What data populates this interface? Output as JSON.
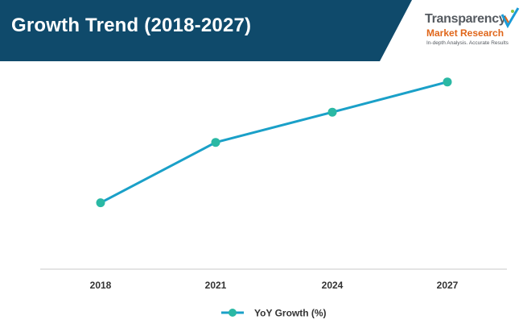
{
  "header": {
    "title": "Growth Trend (2018-2027)",
    "bg_color": "#0f4a6b"
  },
  "logo": {
    "line1": "Transparency",
    "line2": "Market Research",
    "tagline": "In-depth Analysis. Accurate Results",
    "accent_color": "#e0661a",
    "check_colors": [
      "#1a9bd7",
      "#e0661a",
      "#8bc53f"
    ]
  },
  "chart_data": {
    "type": "line",
    "categories": [
      "2018",
      "2021",
      "2024",
      "2027"
    ],
    "series": [
      {
        "name": "YoY Growth (%)",
        "values": [
          1.0,
          3.0,
          4.0,
          5.0
        ],
        "line_color": "#1aa0c8",
        "marker_color": "#2ab8a4"
      }
    ],
    "xlabel": "",
    "ylabel": "",
    "ylim": [
      -1.2,
      5.5
    ],
    "grid": false,
    "legend_position": "bottom-center",
    "axis_color": "#c8c8c8"
  }
}
